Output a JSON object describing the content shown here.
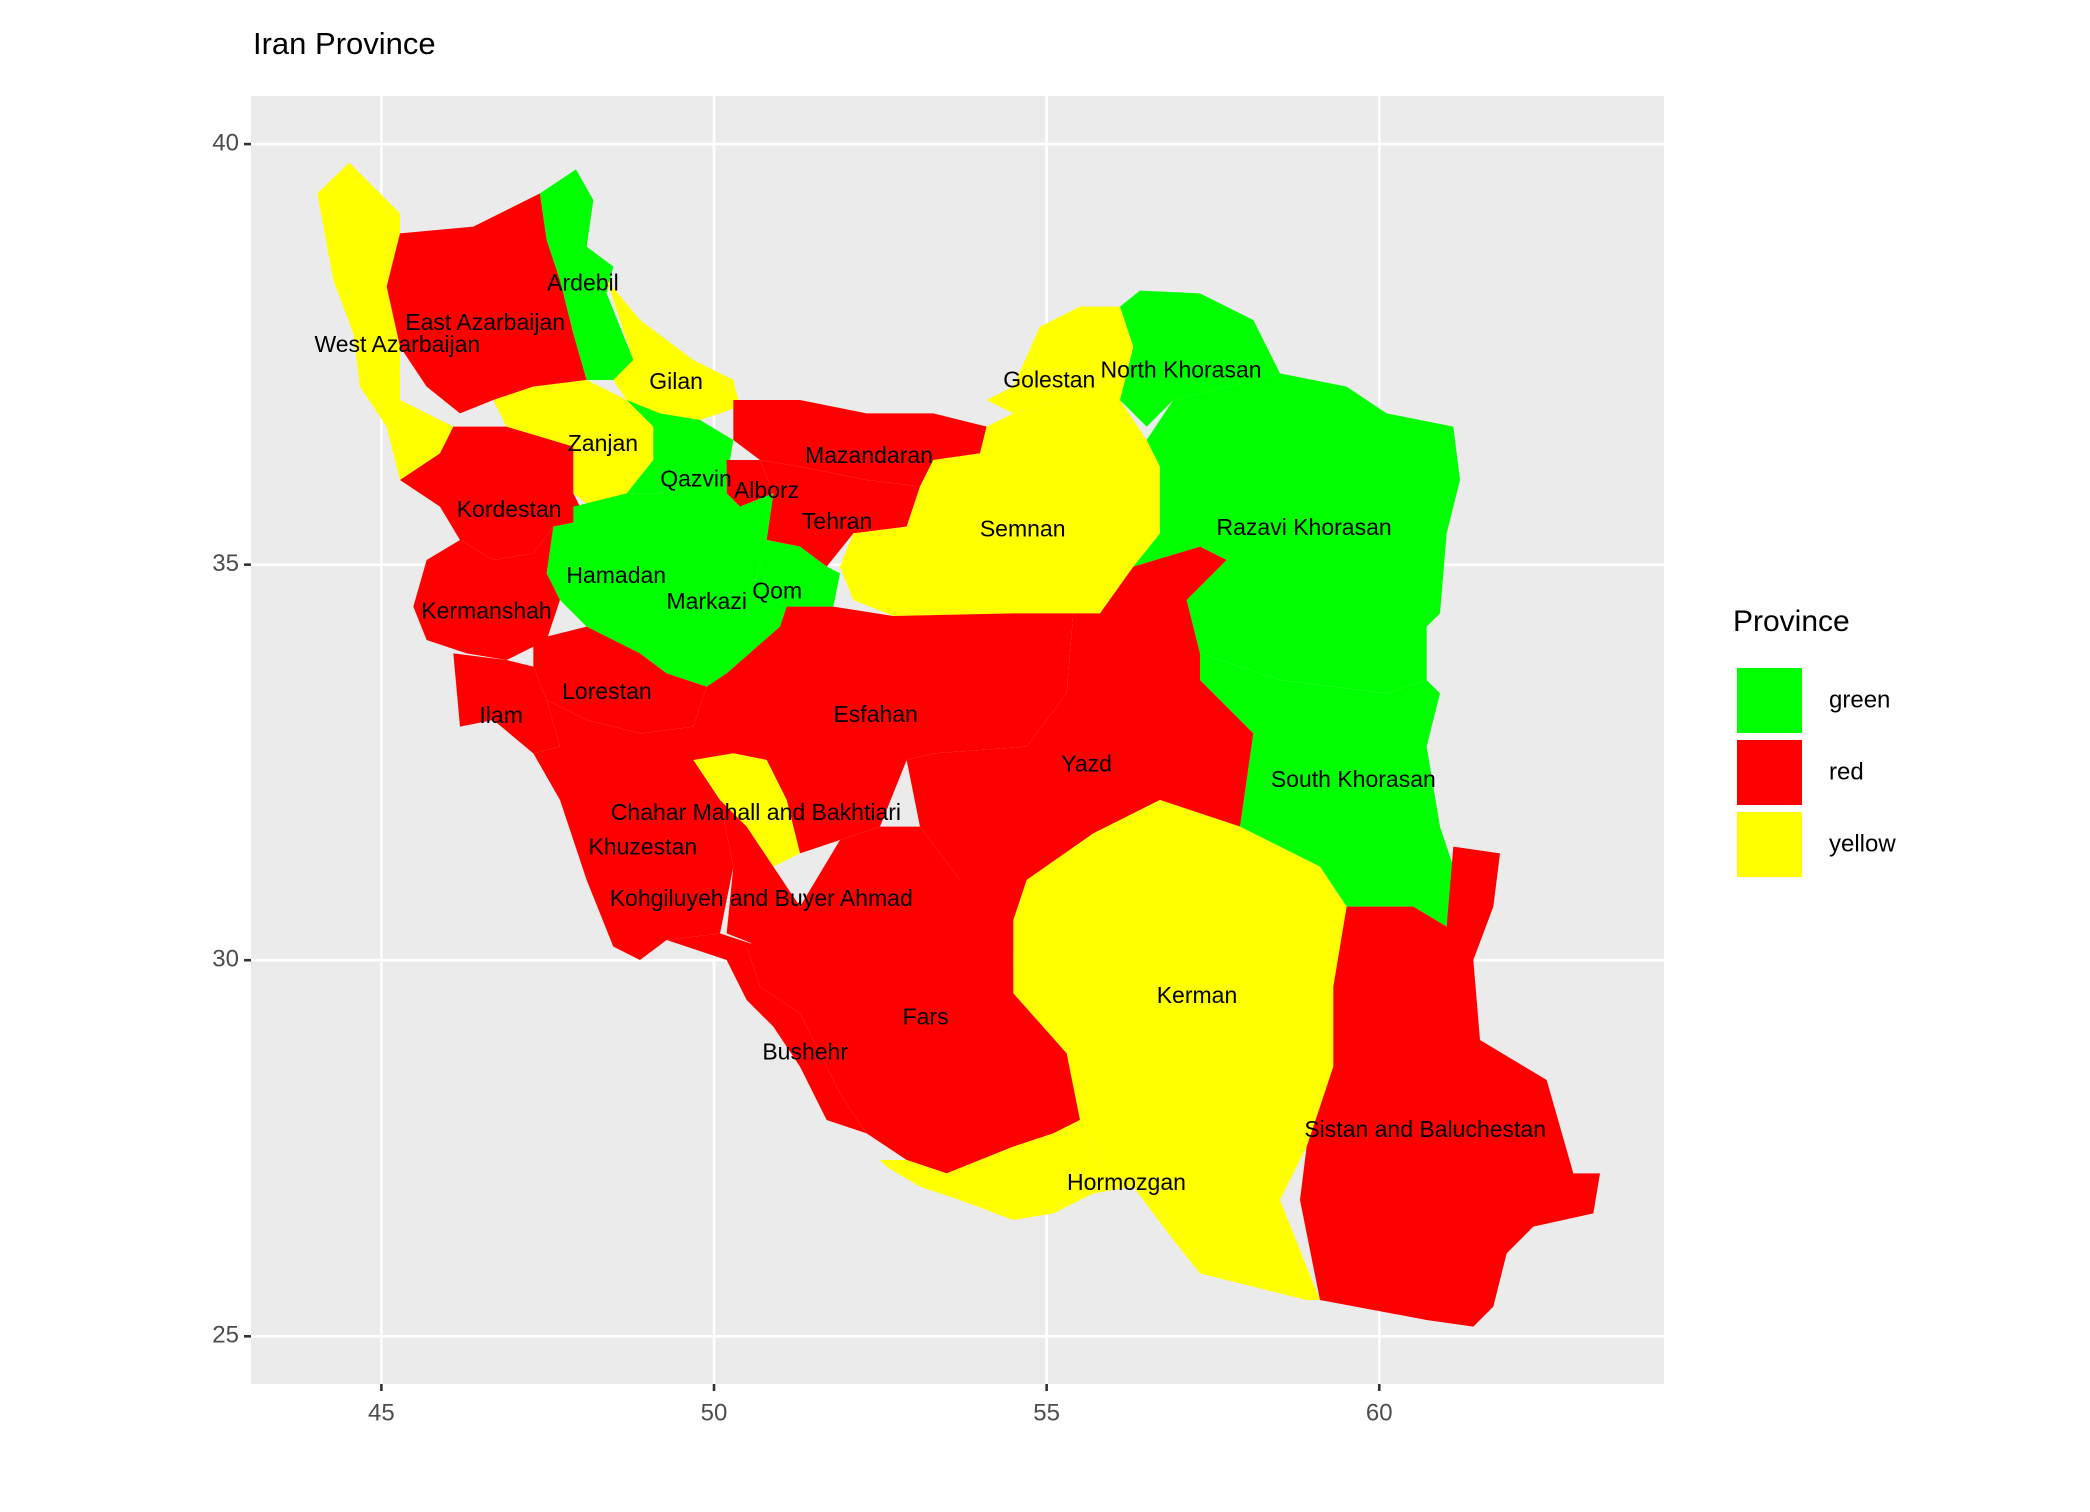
{
  "title": "Iran Province",
  "map": {
    "xlim": [
      43.04,
      64.28
    ],
    "ylim": [
      24.35,
      40.55
    ],
    "xticks": [
      45,
      50,
      55,
      60
    ],
    "yticks": [
      25,
      30,
      35,
      40
    ],
    "projection": "mercator",
    "grid": true
  },
  "legend": {
    "title": "Province",
    "items": [
      {
        "label": "green",
        "color": "#00ff00"
      },
      {
        "label": "red",
        "color": "#ff0000"
      },
      {
        "label": "yellow",
        "color": "#ffff00"
      }
    ]
  },
  "provinces": [
    {
      "name": "West Azarbaijan",
      "lon": 45.24,
      "lat": 37.64,
      "fill": "yellow"
    },
    {
      "name": "East Azarbaijan",
      "lon": 46.56,
      "lat": 37.9,
      "fill": "red"
    },
    {
      "name": "Ardebil",
      "lon": 48.03,
      "lat": 38.37,
      "fill": "green"
    },
    {
      "name": "Gilan",
      "lon": 49.43,
      "lat": 37.2,
      "fill": "yellow"
    },
    {
      "name": "Zanjan",
      "lon": 48.33,
      "lat": 36.46,
      "fill": "yellow"
    },
    {
      "name": "Kordestan",
      "lon": 46.92,
      "lat": 35.66,
      "fill": "red"
    },
    {
      "name": "Qazvin",
      "lon": 49.73,
      "lat": 36.03,
      "fill": "green"
    },
    {
      "name": "Mazandaran",
      "lon": 52.33,
      "lat": 36.31,
      "fill": "red"
    },
    {
      "name": "Alborz",
      "lon": 50.79,
      "lat": 35.89,
      "fill": "red"
    },
    {
      "name": "Tehran",
      "lon": 51.85,
      "lat": 35.51,
      "fill": "red"
    },
    {
      "name": "Golestan",
      "lon": 55.04,
      "lat": 37.22,
      "fill": "yellow"
    },
    {
      "name": "Semnan",
      "lon": 54.64,
      "lat": 35.42,
      "fill": "yellow"
    },
    {
      "name": "North Khorasan",
      "lon": 57.02,
      "lat": 37.34,
      "fill": "green"
    },
    {
      "name": "Razavi Khorasan",
      "lon": 58.87,
      "lat": 35.44,
      "fill": "green"
    },
    {
      "name": "South Khorasan",
      "lon": 59.61,
      "lat": 32.3,
      "fill": "green"
    },
    {
      "name": "Qom",
      "lon": 50.95,
      "lat": 34.66,
      "fill": "green"
    },
    {
      "name": "Markazi",
      "lon": 49.89,
      "lat": 34.53,
      "fill": "green"
    },
    {
      "name": "Hamadan",
      "lon": 48.53,
      "lat": 34.85,
      "fill": "green"
    },
    {
      "name": "Kermanshah",
      "lon": 46.58,
      "lat": 34.41,
      "fill": "red"
    },
    {
      "name": "Ilam",
      "lon": 46.8,
      "lat": 33.11,
      "fill": "red"
    },
    {
      "name": "Lorestan",
      "lon": 48.39,
      "lat": 33.41,
      "fill": "red"
    },
    {
      "name": "Khuzestan",
      "lon": 48.93,
      "lat": 31.44,
      "fill": "red"
    },
    {
      "name": "Esfahan",
      "lon": 52.43,
      "lat": 33.12,
      "fill": "red"
    },
    {
      "name": "Chahar Mahall and Bakhtiari",
      "lon": 50.63,
      "lat": 31.88,
      "fill": "yellow"
    },
    {
      "name": "Kohgiluyeh and Buyer Ahmad",
      "lon": 50.71,
      "lat": 30.78,
      "fill": "red"
    },
    {
      "name": "Yazd",
      "lon": 55.6,
      "lat": 32.5,
      "fill": "red"
    },
    {
      "name": "Kerman",
      "lon": 57.26,
      "lat": 29.52,
      "fill": "yellow"
    },
    {
      "name": "Sistan and Baluchestan",
      "lon": 60.69,
      "lat": 27.76,
      "fill": "red"
    },
    {
      "name": "Fars",
      "lon": 53.18,
      "lat": 29.24,
      "fill": "red"
    },
    {
      "name": "Bushehr",
      "lon": 51.37,
      "lat": 28.78,
      "fill": "red"
    },
    {
      "name": "Hormozgan",
      "lon": 56.2,
      "lat": 27.05,
      "fill": "yellow"
    }
  ]
}
